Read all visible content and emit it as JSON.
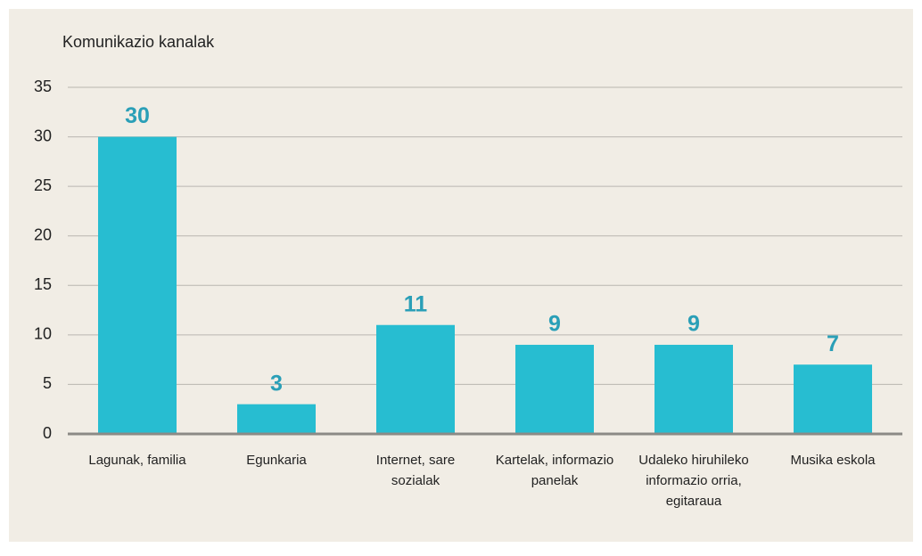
{
  "chart_data": {
    "type": "bar",
    "title": "Komunikazio kanalak",
    "categories": [
      "Lagunak, familia",
      "Egunkaria",
      "Internet, sare sozialak",
      "Kartelak, informazio panelak",
      "Udaleko hiruhileko informazio orria, egitaraua",
      "Musika eskola"
    ],
    "values": [
      30,
      3,
      11,
      9,
      9,
      7
    ],
    "color": "#27bdd1",
    "ylim": [
      0,
      35
    ],
    "yticks": [
      0,
      5,
      10,
      15,
      20,
      25,
      30,
      35
    ],
    "grid": true
  }
}
